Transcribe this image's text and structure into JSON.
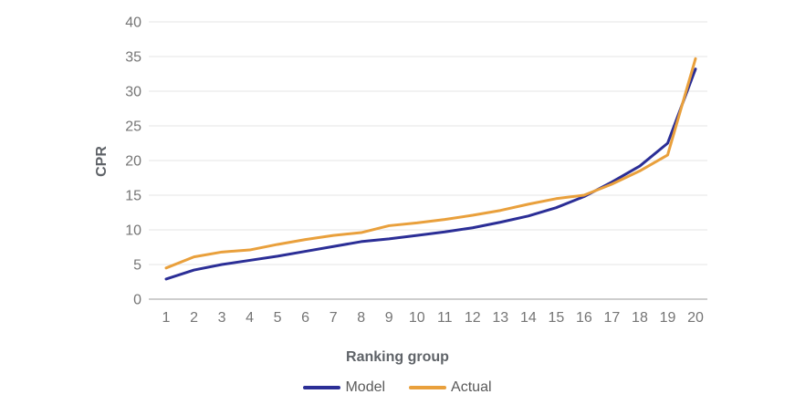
{
  "chart_data": {
    "type": "line",
    "title": "",
    "xlabel": "Ranking group",
    "ylabel": "CPR",
    "x": [
      1,
      2,
      3,
      4,
      5,
      6,
      7,
      8,
      9,
      10,
      11,
      12,
      13,
      14,
      15,
      16,
      17,
      18,
      19,
      20
    ],
    "series": [
      {
        "name": "Model",
        "color": "#2b2e96",
        "values": [
          2.9,
          4.2,
          5.0,
          5.6,
          6.2,
          6.9,
          7.6,
          8.3,
          8.7,
          9.2,
          9.7,
          10.3,
          11.1,
          12.0,
          13.2,
          14.8,
          16.9,
          19.2,
          22.5,
          33.2
        ]
      },
      {
        "name": "Actual",
        "color": "#e9a03c",
        "values": [
          4.5,
          6.1,
          6.8,
          7.1,
          7.9,
          8.6,
          9.2,
          9.6,
          10.6,
          11.0,
          11.5,
          12.1,
          12.8,
          13.7,
          14.5,
          15.0,
          16.6,
          18.5,
          20.8,
          34.7
        ]
      }
    ],
    "ylim": [
      0,
      40
    ],
    "yticks": [
      0,
      5,
      10,
      15,
      20,
      25,
      30,
      35,
      40
    ],
    "grid": true,
    "legend_position": "bottom"
  },
  "colors": {
    "background": "#ffffff",
    "gridline": "#e6e6e6",
    "baseline": "#9e9e9e",
    "tick_text": "#757575",
    "axis_title_text": "#5f6368",
    "legend_text": "#5a5a5a"
  }
}
